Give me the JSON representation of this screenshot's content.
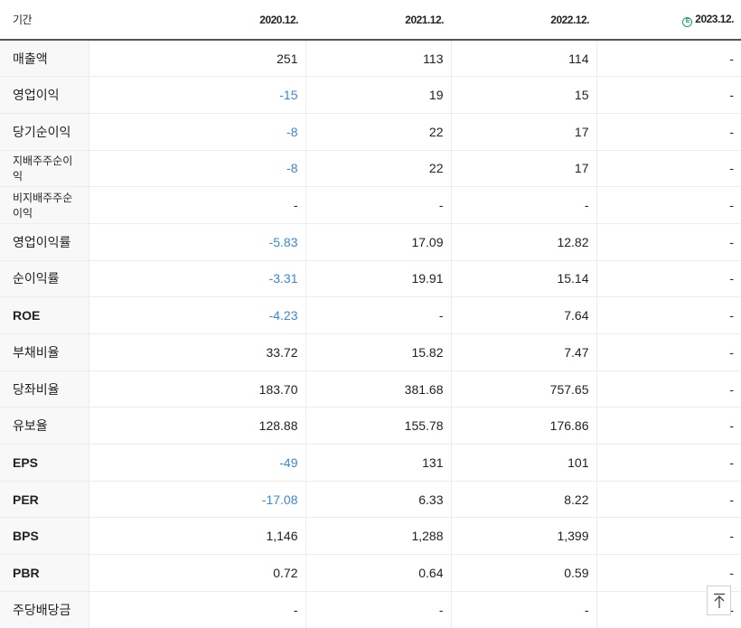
{
  "header": {
    "period_label": "기간",
    "years": [
      "2020.12.",
      "2021.12.",
      "2022.12.",
      "2023.12."
    ],
    "estimate_icon": "circle-e-icon",
    "estimate_color": "#1aa260"
  },
  "rows": [
    {
      "label": "매출액",
      "values": [
        "251",
        "113",
        "114",
        "-"
      ]
    },
    {
      "label": "영업이익",
      "values": [
        "-15",
        "19",
        "15",
        "-"
      ]
    },
    {
      "label": "당기순이익",
      "values": [
        "-8",
        "22",
        "17",
        "-"
      ]
    },
    {
      "label": "지배주주순이익",
      "values": [
        "-8",
        "22",
        "17",
        "-"
      ]
    },
    {
      "label": "비지배주주순이익",
      "values": [
        "-",
        "-",
        "-",
        "-"
      ]
    },
    {
      "label": "영업이익률",
      "values": [
        "-5.83",
        "17.09",
        "12.82",
        "-"
      ]
    },
    {
      "label": "순이익률",
      "values": [
        "-3.31",
        "19.91",
        "15.14",
        "-"
      ]
    },
    {
      "label": "ROE",
      "values": [
        "-4.23",
        "-",
        "7.64",
        "-"
      ]
    },
    {
      "label": "부채비율",
      "values": [
        "33.72",
        "15.82",
        "7.47",
        "-"
      ]
    },
    {
      "label": "당좌비율",
      "values": [
        "183.70",
        "381.68",
        "757.65",
        "-"
      ]
    },
    {
      "label": "유보율",
      "values": [
        "128.88",
        "155.78",
        "176.86",
        "-"
      ]
    },
    {
      "label": "EPS",
      "values": [
        "-49",
        "131",
        "101",
        "-"
      ]
    },
    {
      "label": "PER",
      "values": [
        "-17.08",
        "6.33",
        "8.22",
        "-"
      ]
    },
    {
      "label": "BPS",
      "values": [
        "1,146",
        "1,288",
        "1,399",
        "-"
      ]
    },
    {
      "label": "PBR",
      "values": [
        "0.72",
        "0.64",
        "0.59",
        "-"
      ]
    },
    {
      "label": "주당배당금",
      "values": [
        "-",
        "-",
        "-",
        "-"
      ]
    }
  ],
  "negative_color": "#3a87d8",
  "scroll_top_icon": "arrow-up-to-top-icon"
}
